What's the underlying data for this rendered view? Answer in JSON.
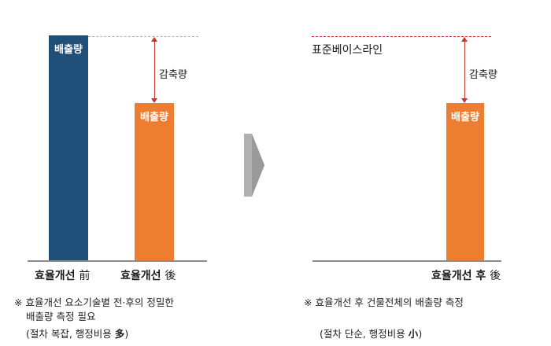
{
  "left_panel": {
    "bar_before_label": "배출량",
    "bar_after_label": "배출량",
    "reduction_label": "감축량",
    "xlabel_before": {
      "text": "효율개선",
      "hanja": "前"
    },
    "xlabel_after": {
      "text": "효율개선",
      "hanja": "後"
    },
    "note_line1": "※ 효율개선 요소기술별 전·후의 정밀한",
    "note_line2": "배출량 측정 필요",
    "note_paren": {
      "text": "(절차 복잡, 행정비용",
      "emph": "多",
      "close": ")"
    }
  },
  "right_panel": {
    "baseline_label": "표준베이스라인",
    "bar_label": "배출량",
    "reduction_label": "감축량",
    "xlabel": {
      "text": "효율개선 후",
      "hanja": "後"
    },
    "note_line1": "※ 효율개선 후 건물전체의 배출량 측정",
    "note_paren": {
      "text": "(절차 단순, 행정비용",
      "emph": "小",
      "close": ")"
    }
  },
  "colors": {
    "bar_before": "#1f4e79",
    "bar_after": "#ed7d31",
    "arrow": "#c0392b",
    "baseline_dash": "#d22f2f",
    "transition_arrow": "#a6a6a6"
  }
}
